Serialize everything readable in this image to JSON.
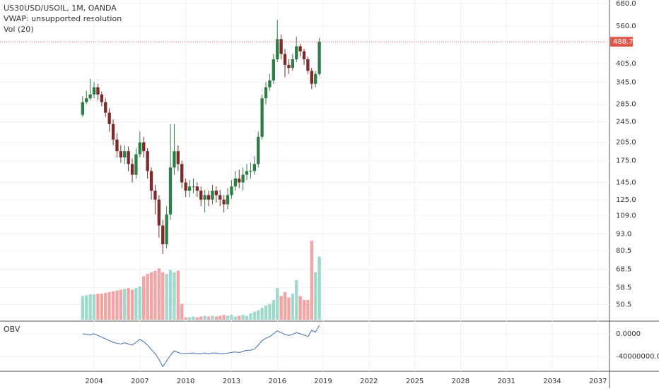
{
  "chart_data": [
    {
      "type": "candlestick",
      "title": "US30USD/USOIL, 1M, OANDA",
      "indicators": [
        "VWAP: unsupported resolution",
        "Vol (20)"
      ],
      "x": [
        2003.25,
        2003.5,
        2003.75,
        2004,
        2004.25,
        2004.5,
        2004.75,
        2005,
        2005.25,
        2005.5,
        2005.75,
        2006,
        2006.25,
        2006.5,
        2006.75,
        2007,
        2007.25,
        2007.5,
        2007.75,
        2008,
        2008.25,
        2008.5,
        2008.75,
        2009,
        2009.25,
        2009.5,
        2009.75,
        2010,
        2010.25,
        2010.5,
        2010.75,
        2011,
        2011.25,
        2011.5,
        2011.75,
        2012,
        2012.25,
        2012.5,
        2012.75,
        2013,
        2013.25,
        2013.5,
        2013.75,
        2014,
        2014.25,
        2014.5,
        2014.75,
        2015,
        2015.25,
        2015.5,
        2015.75,
        2016,
        2016.25,
        2016.5,
        2016.75,
        2017,
        2017.25,
        2017.5,
        2017.75,
        2018,
        2018.25,
        2018.5,
        2018.75
      ],
      "open": [
        260,
        290,
        300,
        310,
        330,
        310,
        290,
        265,
        240,
        210,
        190,
        180,
        190,
        170,
        155,
        185,
        205,
        190,
        160,
        135,
        125,
        100,
        85,
        110,
        165,
        190,
        170,
        145,
        135,
        140,
        140,
        135,
        125,
        130,
        125,
        135,
        130,
        125,
        120,
        130,
        140,
        150,
        145,
        155,
        160,
        160,
        170,
        215,
        300,
        330,
        350,
        420,
        500,
        440,
        400,
        390,
        420,
        470,
        450,
        420,
        380,
        340,
        370
      ],
      "high": [
        305,
        320,
        355,
        345,
        340,
        318,
        300,
        275,
        250,
        222,
        200,
        200,
        198,
        178,
        195,
        225,
        215,
        195,
        165,
        142,
        130,
        105,
        118,
        240,
        240,
        200,
        175,
        150,
        148,
        150,
        145,
        140,
        136,
        135,
        142,
        140,
        136,
        130,
        138,
        148,
        160,
        162,
        165,
        170,
        172,
        182,
        225,
        310,
        345,
        370,
        440,
        590,
        520,
        460,
        420,
        440,
        510,
        480,
        460,
        430,
        390,
        380,
        505
      ],
      "low": [
        255,
        285,
        295,
        300,
        295,
        280,
        255,
        225,
        200,
        180,
        172,
        170,
        160,
        145,
        150,
        180,
        180,
        150,
        125,
        110,
        90,
        78,
        82,
        105,
        155,
        160,
        138,
        128,
        128,
        132,
        128,
        118,
        112,
        118,
        120,
        122,
        118,
        112,
        115,
        126,
        135,
        138,
        135,
        148,
        150,
        155,
        165,
        210,
        285,
        320,
        340,
        410,
        420,
        360,
        370,
        380,
        410,
        430,
        400,
        370,
        325,
        330,
        365
      ],
      "close": [
        290,
        300,
        310,
        330,
        310,
        290,
        265,
        240,
        210,
        190,
        180,
        190,
        170,
        155,
        185,
        205,
        190,
        160,
        135,
        125,
        100,
        85,
        110,
        165,
        190,
        170,
        145,
        135,
        140,
        140,
        135,
        125,
        130,
        125,
        135,
        130,
        125,
        120,
        130,
        140,
        150,
        145,
        155,
        160,
        160,
        170,
        215,
        300,
        330,
        350,
        420,
        500,
        440,
        400,
        390,
        420,
        470,
        450,
        420,
        380,
        340,
        370,
        488.7
      ],
      "volume": [
        30,
        31,
        32,
        32,
        33,
        33,
        34,
        35,
        36,
        37,
        38,
        39,
        40,
        38,
        40,
        42,
        55,
        58,
        60,
        62,
        65,
        60,
        58,
        63,
        60,
        62,
        20,
        3,
        3,
        4,
        3,
        4,
        5,
        4,
        5,
        4,
        5,
        6,
        5,
        6,
        4,
        5,
        6,
        5,
        8,
        10,
        12,
        15,
        18,
        20,
        25,
        40,
        30,
        35,
        28,
        33,
        50,
        30,
        25,
        25,
        100,
        60,
        80
      ],
      "last_price": 488.7,
      "ylim": [
        44.3,
        701
      ],
      "log": true,
      "yticks": [
        {
          "value": 680,
          "label": "680.0"
        },
        {
          "value": 560,
          "label": "560.0"
        },
        {
          "value": 405,
          "label": "405.0"
        },
        {
          "value": 345,
          "label": "345.0"
        },
        {
          "value": 285,
          "label": "285.0"
        },
        {
          "value": 245,
          "label": "245.0"
        },
        {
          "value": 205,
          "label": "205.0"
        },
        {
          "value": 175,
          "label": "175.0"
        },
        {
          "value": 145,
          "label": "145.0"
        },
        {
          "value": 125,
          "label": "125.0"
        },
        {
          "value": 109,
          "label": "109.0"
        },
        {
          "value": 93,
          "label": "93.0"
        },
        80.5,
        68.5,
        58.5,
        50.5
      ],
      "xlim": [
        1997.84,
        2037.75
      ],
      "xticks": [
        2004,
        2007,
        2010,
        2013,
        2016,
        2019,
        2022,
        2025,
        2028,
        2031,
        2034,
        2037
      ],
      "grid": true,
      "up_color": "#2f7d46",
      "down_color": "#7d2a2a",
      "volume_up_color": "#9fd8cc",
      "volume_down_color": "#f4a3a3",
      "last_price_color": "#e0584a"
    },
    {
      "type": "line",
      "title": "OBV",
      "color": "#3d6fb6",
      "x": [
        2003.25,
        2003.5,
        2003.75,
        2004,
        2004.25,
        2004.5,
        2004.75,
        2005,
        2005.25,
        2005.5,
        2005.75,
        2006,
        2006.25,
        2006.5,
        2006.75,
        2007,
        2007.25,
        2007.5,
        2007.75,
        2008,
        2008.25,
        2008.5,
        2008.75,
        2009,
        2009.25,
        2009.5,
        2009.75,
        2010,
        2010.25,
        2010.5,
        2010.75,
        2011,
        2011.25,
        2011.5,
        2011.75,
        2012,
        2012.25,
        2012.5,
        2012.75,
        2013,
        2013.25,
        2013.5,
        2013.75,
        2014,
        2014.25,
        2014.5,
        2014.75,
        2015,
        2015.25,
        2015.5,
        2015.75,
        2016,
        2016.25,
        2016.5,
        2016.75,
        2017,
        2017.25,
        2017.5,
        2017.75,
        2018,
        2018.25,
        2018.5,
        2018.75
      ],
      "values": [
        0,
        -1000000,
        -2000000,
        0,
        -3000000,
        -6000000,
        -9000000,
        -12000000,
        -15000000,
        -17000000,
        -18000000,
        -16000000,
        -18000000,
        -20000000,
        -15000000,
        -10000000,
        -14000000,
        -20000000,
        -28000000,
        -35000000,
        -45000000,
        -58000000,
        -48000000,
        -38000000,
        -30000000,
        -33000000,
        -35000000,
        -35000000,
        -34000000,
        -34000000,
        -35000000,
        -35000000,
        -34000000,
        -35000000,
        -34000000,
        -34000000,
        -35000000,
        -35000000,
        -34000000,
        -33000000,
        -32000000,
        -33000000,
        -31000000,
        -29000000,
        -29000000,
        -27000000,
        -20000000,
        -12000000,
        -8000000,
        -5000000,
        0,
        5000000,
        2000000,
        -1000000,
        -3000000,
        -1000000,
        2000000,
        0,
        -2000000,
        -5000000,
        6000000,
        3000000,
        15000000
      ],
      "ylim": [
        -66000000,
        21000000
      ],
      "yticks": [
        {
          "value": 0,
          "label": "0.0000"
        },
        {
          "value": -40000000,
          "label": "-40000000.0000"
        }
      ]
    }
  ]
}
